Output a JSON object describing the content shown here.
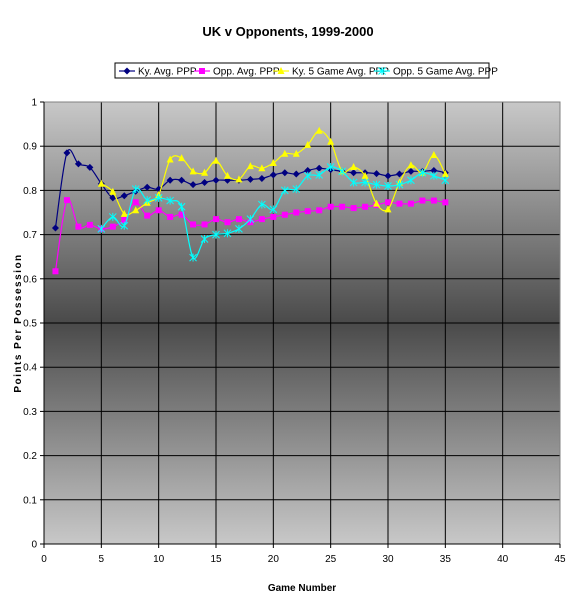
{
  "chart_data": {
    "type": "line",
    "title": "UK v Opponents, 1999-2000",
    "xlabel": "Game Number",
    "ylabel": "Points Per Possession",
    "xlim": [
      0,
      45
    ],
    "ylim": [
      0,
      1
    ],
    "xticks": [
      "0",
      "5",
      "10",
      "15",
      "20",
      "25",
      "30",
      "35",
      "40",
      "45"
    ],
    "yticks": [
      "0",
      "0.1",
      "0.2",
      "0.3",
      "0.4",
      "0.5",
      "0.6",
      "0.7",
      "0.8",
      "0.9",
      "1"
    ],
    "grid": "horizontal",
    "legend": "top",
    "x": [
      1,
      2,
      3,
      4,
      5,
      6,
      7,
      8,
      9,
      10,
      11,
      12,
      13,
      14,
      15,
      16,
      17,
      18,
      19,
      20,
      21,
      22,
      23,
      24,
      25,
      26,
      27,
      28,
      29,
      30,
      31,
      32,
      33,
      34,
      35
    ],
    "series": [
      {
        "name": "Ky. Avg. PPP",
        "color": "#000080",
        "marker": "diamond",
        "values": [
          0.715,
          0.885,
          0.86,
          0.852,
          0.815,
          0.783,
          0.788,
          0.798,
          0.807,
          0.803,
          0.823,
          0.823,
          0.813,
          0.818,
          0.823,
          0.823,
          0.823,
          0.825,
          0.827,
          0.835,
          0.84,
          0.837,
          0.845,
          0.85,
          0.847,
          0.843,
          0.84,
          0.84,
          0.838,
          0.833,
          0.837,
          0.843,
          0.843,
          0.845,
          0.84
        ]
      },
      {
        "name": "Opp. Avg. PPP",
        "color": "#ff00ff",
        "marker": "square",
        "values": [
          0.617,
          0.778,
          0.718,
          0.722,
          0.713,
          0.718,
          0.733,
          0.773,
          0.743,
          0.755,
          0.74,
          0.745,
          0.723,
          0.723,
          0.735,
          0.728,
          0.735,
          0.728,
          0.735,
          0.74,
          0.745,
          0.75,
          0.753,
          0.755,
          0.763,
          0.763,
          0.76,
          0.763,
          0.767,
          0.773,
          0.77,
          0.77,
          0.777,
          0.777,
          0.773
        ]
      },
      {
        "name": "Ky. 5 Game Avg. PPP",
        "color": "#ffff00",
        "marker": "triangle",
        "values": [
          null,
          null,
          null,
          null,
          0.815,
          0.797,
          0.747,
          0.755,
          0.772,
          0.79,
          0.87,
          0.873,
          0.843,
          0.84,
          0.867,
          0.833,
          0.825,
          0.855,
          0.85,
          0.862,
          0.883,
          0.883,
          0.903,
          0.935,
          0.91,
          0.843,
          0.853,
          0.833,
          0.77,
          0.757,
          0.818,
          0.857,
          0.84,
          0.88,
          0.837
        ]
      },
      {
        "name": "Opp. 5 Game Avg. PPP",
        "color": "#00ffff",
        "marker": "star",
        "values": [
          null,
          null,
          null,
          null,
          0.713,
          0.74,
          0.72,
          0.803,
          0.778,
          0.783,
          0.777,
          0.763,
          0.648,
          0.69,
          0.7,
          0.703,
          0.713,
          0.735,
          0.768,
          0.757,
          0.8,
          0.803,
          0.833,
          0.835,
          0.853,
          0.843,
          0.818,
          0.818,
          0.813,
          0.81,
          0.813,
          0.823,
          0.84,
          0.833,
          0.823
        ]
      }
    ]
  }
}
